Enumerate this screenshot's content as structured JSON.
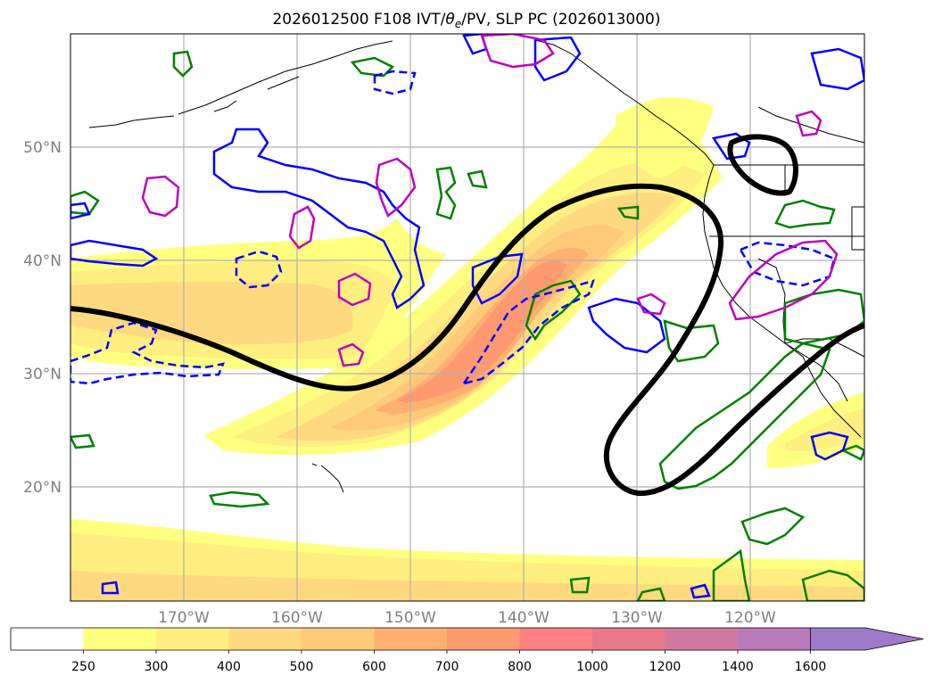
{
  "title": "2026012500 F108 IVT/θe/PV, SLP PC (2026013000)",
  "title_parts": {
    "prefix": "2026012500 F108 IVT/",
    "theta": "θ",
    "sub": "e",
    "suffix": "/PV, SLP PC (2026013000)"
  },
  "map": {
    "lon_range": [
      -180,
      -110
    ],
    "lat_range": [
      10,
      60
    ],
    "lat_labels": [
      "20°N",
      "30°N",
      "40°N",
      "50°N"
    ],
    "lon_labels": [
      "170°W",
      "160°W",
      "150°W",
      "140°W",
      "130°W",
      "120°W"
    ]
  },
  "colorbar": {
    "levels": [
      "250",
      "300",
      "400",
      "500",
      "600",
      "700",
      "800",
      "1000",
      "1200",
      "1400",
      "1600"
    ],
    "colors": [
      "#ffffff",
      "#ffff80",
      "#ffee80",
      "#ffd980",
      "#ffc97a",
      "#ffb070",
      "#ff9a70",
      "#ff8080",
      "#e87a8a",
      "#d07aa0",
      "#b87ab8",
      "#a07ac8"
    ],
    "extend": "max"
  },
  "colors": {
    "pv_green": "#008000",
    "pv_blue": "#0000ff",
    "pv_magenta": "#bf00bf",
    "slp": "#000000"
  }
}
